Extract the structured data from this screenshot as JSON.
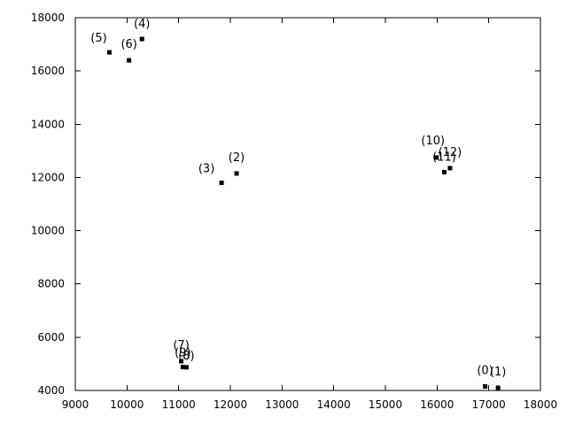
{
  "chart_data": {
    "type": "scatter",
    "title": "",
    "xlabel": "",
    "ylabel": "",
    "xlim": [
      9000,
      18000
    ],
    "ylim": [
      4000,
      18000
    ],
    "x_ticks": [
      9000,
      10000,
      11000,
      12000,
      13000,
      14000,
      15000,
      16000,
      17000,
      18000
    ],
    "y_ticks": [
      4000,
      6000,
      8000,
      10000,
      12000,
      14000,
      16000,
      18000
    ],
    "x_tick_labels": [
      "9000",
      "10000",
      "11000",
      "12000",
      "13000",
      "14000",
      "15000",
      "16000",
      "17000",
      "18000"
    ],
    "y_tick_labels": [
      "4000",
      "6000",
      "8000",
      "10000",
      "12000",
      "14000",
      "16000",
      "18000"
    ],
    "grid": false,
    "legend": "none",
    "marker_color": "#000000",
    "points": [
      {
        "label": "(0)",
        "x": 16930,
        "y": 4150
      },
      {
        "label": "(1)",
        "x": 17180,
        "y": 4100
      },
      {
        "label": "(2)",
        "x": 12120,
        "y": 12150
      },
      {
        "label": "(3)",
        "x": 11830,
        "y": 11800
      },
      {
        "label": "(4)",
        "x": 10290,
        "y": 17200
      },
      {
        "label": "(5)",
        "x": 9660,
        "y": 16700
      },
      {
        "label": "(6)",
        "x": 10040,
        "y": 16400
      },
      {
        "label": "(7)",
        "x": 11050,
        "y": 5100
      },
      {
        "label": "(8)",
        "x": 11150,
        "y": 4870
      },
      {
        "label": "(9)",
        "x": 11080,
        "y": 4880
      },
      {
        "label": "(10)",
        "x": 15990,
        "y": 12750
      },
      {
        "label": "(11)",
        "x": 16140,
        "y": 12200
      },
      {
        "label": "(12)",
        "x": 16250,
        "y": 12350
      }
    ]
  }
}
